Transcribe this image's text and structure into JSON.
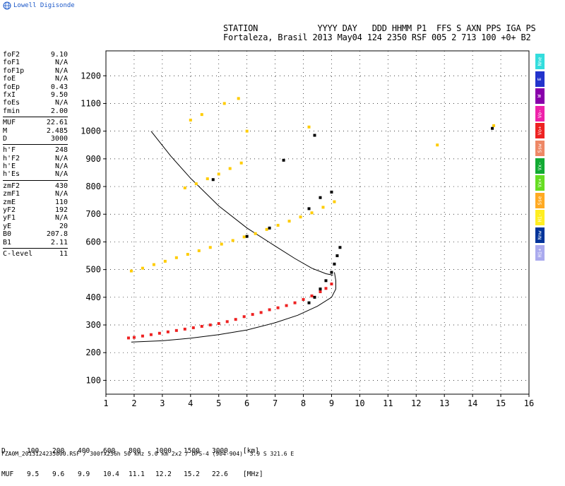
{
  "brand": "Lowell Digisonde",
  "header": {
    "line1": "STATION            YYYY DAY   DDD HHMM P1  FFS S AXN PPS IGA PS",
    "line2": "Fortaleza, Brasil 2013 May04 124 2350 RSF 005 2 713 100 +0+ B2"
  },
  "params": [
    [
      {
        "label": "foF2",
        "value": "9.10"
      },
      {
        "label": "foF1",
        "value": "N/A"
      },
      {
        "label": "foF1p",
        "value": "N/A"
      },
      {
        "label": "foE",
        "value": "N/A"
      },
      {
        "label": "foEp",
        "value": "0.43"
      },
      {
        "label": "fxI",
        "value": "9.50"
      },
      {
        "label": "foEs",
        "value": "N/A"
      },
      {
        "label": "fmin",
        "value": "2.00"
      }
    ],
    [
      {
        "label": "MUF",
        "value": "22.61"
      },
      {
        "label": "M",
        "value": "2.485"
      },
      {
        "label": "D",
        "value": "3000"
      }
    ],
    [
      {
        "label": "h'F",
        "value": "248"
      },
      {
        "label": "h'F2",
        "value": "N/A"
      },
      {
        "label": "h'E",
        "value": "N/A"
      },
      {
        "label": "h'Es",
        "value": "N/A"
      }
    ],
    [
      {
        "label": "zmF2",
        "value": "430"
      },
      {
        "label": "zmF1",
        "value": "N/A"
      },
      {
        "label": "zmE",
        "value": "110"
      },
      {
        "label": "yF2",
        "value": "192"
      },
      {
        "label": "yF1",
        "value": "N/A"
      },
      {
        "label": "yE",
        "value": "20"
      },
      {
        "label": "B0",
        "value": "207.8"
      },
      {
        "label": "B1",
        "value": "2.11"
      }
    ],
    [
      {
        "label": "C-level",
        "value": "11"
      }
    ]
  ],
  "legend": [
    {
      "label": "Nne",
      "color": "#33dddd"
    },
    {
      "label": "E",
      "color": "#2233cc"
    },
    {
      "label": "W",
      "color": "#8800aa"
    },
    {
      "label": "Vo-",
      "color": "#ee22aa"
    },
    {
      "label": "Vo+",
      "color": "#ee2222"
    },
    {
      "label": "Ssw",
      "color": "#ee8866"
    },
    {
      "label": "Vx-",
      "color": "#11aa33"
    },
    {
      "label": "Vx+",
      "color": "#66dd22"
    },
    {
      "label": "Sse",
      "color": "#ffaa22"
    },
    {
      "label": "Hi-",
      "color": "#ffee22"
    },
    {
      "label": "Nnw",
      "color": "#003399"
    },
    {
      "label": "Hi+",
      "color": "#aaaaee"
    }
  ],
  "bottom": {
    "d_label": "D",
    "d_values": [
      "100",
      "200",
      "400",
      "600",
      "800",
      "1000",
      "1500",
      "3000",
      "[km]"
    ],
    "muf_label": "MUF",
    "muf_values": [
      "9.5",
      "9.6",
      "9.9",
      "10.4",
      "11.1",
      "12.2",
      "15.2",
      "22.6",
      "[MHz]"
    ]
  },
  "footer": "FZA0M_2013124235000.RSF / 300fx256h 50 kHz 5.0 km 2x2 / DPS-4 (904-904)  3.9 S 321.6 E",
  "chart_data": {
    "type": "scatter",
    "x_ticks": [
      1,
      2,
      3,
      4,
      5,
      6,
      7,
      8,
      9,
      10,
      11,
      12,
      13,
      14,
      15,
      16
    ],
    "y_ticks": [
      100,
      200,
      300,
      400,
      500,
      600,
      700,
      800,
      900,
      1000,
      1100,
      1200
    ],
    "xlim": [
      1,
      16
    ],
    "ylim": [
      50,
      1290
    ],
    "grid": true,
    "series": [
      {
        "color": "#ee2222",
        "points": [
          [
            1.8,
            253
          ],
          [
            2.0,
            255
          ],
          [
            2.3,
            260
          ],
          [
            2.6,
            265
          ],
          [
            2.9,
            270
          ],
          [
            3.2,
            275
          ],
          [
            3.5,
            280
          ],
          [
            3.8,
            285
          ],
          [
            4.1,
            290
          ],
          [
            4.4,
            295
          ],
          [
            4.7,
            300
          ],
          [
            5.0,
            305
          ],
          [
            5.3,
            312
          ],
          [
            5.6,
            320
          ],
          [
            5.9,
            330
          ],
          [
            6.2,
            338
          ],
          [
            6.5,
            345
          ],
          [
            6.8,
            355
          ],
          [
            7.1,
            362
          ],
          [
            7.4,
            370
          ],
          [
            7.7,
            380
          ],
          [
            8.0,
            392
          ],
          [
            8.3,
            405
          ],
          [
            8.6,
            420
          ],
          [
            8.8,
            432
          ],
          [
            9.0,
            448
          ]
        ]
      },
      {
        "color": "#ffcc00",
        "points": [
          [
            1.9,
            495
          ],
          [
            2.3,
            505
          ],
          [
            2.7,
            518
          ],
          [
            3.1,
            530
          ],
          [
            3.5,
            543
          ],
          [
            3.9,
            555
          ],
          [
            4.3,
            568
          ],
          [
            4.7,
            580
          ],
          [
            5.1,
            592
          ],
          [
            5.5,
            605
          ],
          [
            5.9,
            618
          ],
          [
            6.3,
            630
          ],
          [
            6.7,
            645
          ],
          [
            7.1,
            660
          ],
          [
            7.5,
            675
          ],
          [
            7.9,
            690
          ],
          [
            8.3,
            705
          ],
          [
            8.7,
            725
          ],
          [
            9.1,
            745
          ],
          [
            3.8,
            795
          ],
          [
            4.2,
            810
          ],
          [
            4.6,
            828
          ],
          [
            5.0,
            845
          ],
          [
            5.4,
            865
          ],
          [
            5.8,
            885
          ],
          [
            6.0,
            1000
          ],
          [
            8.2,
            1015
          ],
          [
            4.0,
            1040
          ],
          [
            4.4,
            1060
          ],
          [
            5.2,
            1100
          ],
          [
            5.7,
            1118
          ],
          [
            12.75,
            950
          ],
          [
            14.75,
            1020
          ]
        ]
      },
      {
        "color": "#000000",
        "points": [
          [
            8.2,
            380
          ],
          [
            8.4,
            400
          ],
          [
            8.6,
            430
          ],
          [
            8.8,
            460
          ],
          [
            9.0,
            490
          ],
          [
            9.1,
            520
          ],
          [
            9.2,
            550
          ],
          [
            9.3,
            580
          ],
          [
            9.0,
            780
          ],
          [
            8.6,
            760
          ],
          [
            8.2,
            720
          ],
          [
            6.8,
            650
          ],
          [
            6.0,
            620
          ],
          [
            4.8,
            825
          ],
          [
            7.3,
            895
          ],
          [
            8.4,
            985
          ],
          [
            14.7,
            1010
          ]
        ]
      }
    ],
    "curves": [
      {
        "name": "virtual-height-trace",
        "points": [
          [
            1.9,
            238
          ],
          [
            3.0,
            243
          ],
          [
            4.0,
            252
          ],
          [
            5.0,
            265
          ],
          [
            6.0,
            282
          ],
          [
            7.0,
            308
          ],
          [
            7.8,
            335
          ],
          [
            8.5,
            368
          ],
          [
            9.0,
            400
          ],
          [
            9.15,
            430
          ],
          [
            9.15,
            460
          ],
          [
            9.1,
            490
          ]
        ]
      },
      {
        "name": "muf-curve",
        "points": [
          [
            2.6,
            1000
          ],
          [
            3.3,
            910
          ],
          [
            4.0,
            830
          ],
          [
            5.0,
            730
          ],
          [
            6.0,
            650
          ],
          [
            7.0,
            585
          ],
          [
            7.7,
            540
          ],
          [
            8.3,
            505
          ],
          [
            8.8,
            485
          ],
          [
            9.05,
            480
          ]
        ]
      }
    ]
  }
}
